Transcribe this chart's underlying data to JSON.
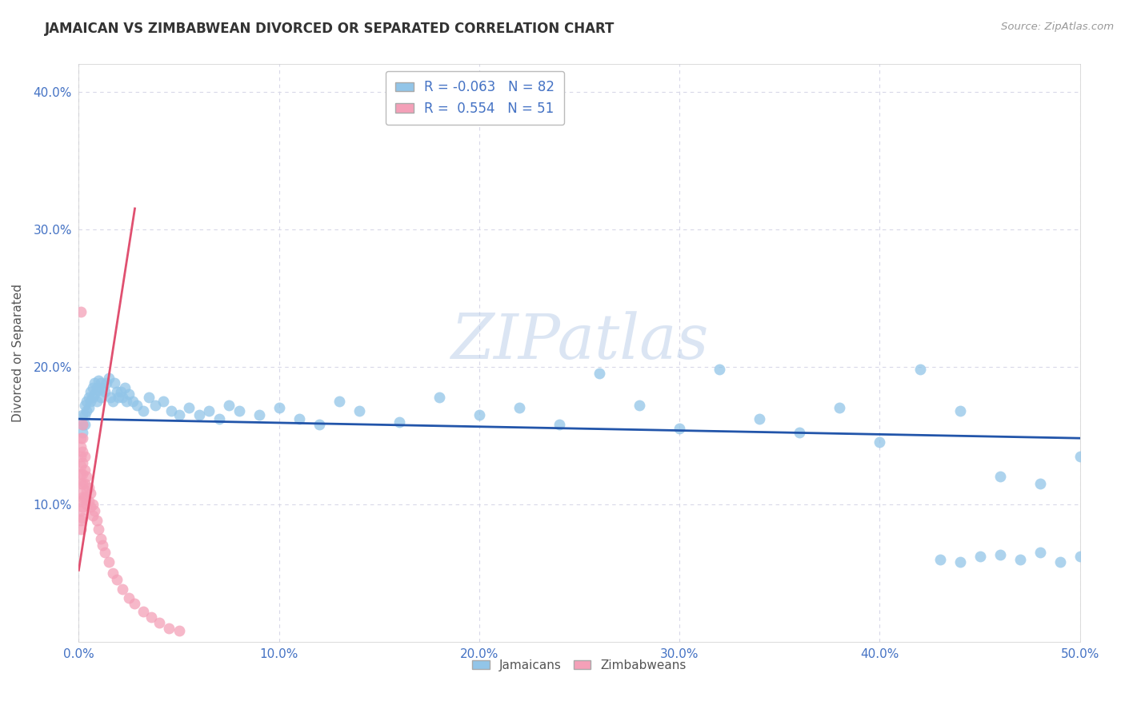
{
  "title": "JAMAICAN VS ZIMBABWEAN DIVORCED OR SEPARATED CORRELATION CHART",
  "source": "Source: ZipAtlas.com",
  "ylabel_label": "Divorced or Separated",
  "xlim": [
    0.0,
    0.5
  ],
  "ylim": [
    0.0,
    0.42
  ],
  "xticks": [
    0.0,
    0.1,
    0.2,
    0.3,
    0.4,
    0.5
  ],
  "yticks": [
    0.1,
    0.2,
    0.3,
    0.4
  ],
  "legend_bottom": [
    "Jamaicans",
    "Zimbabweans"
  ],
  "R_jamaican": -0.063,
  "N_jamaican": 82,
  "R_zimbabwean": 0.554,
  "N_zimbabwean": 51,
  "jamaican_color": "#92C5E8",
  "zimbabwean_color": "#F4A0B8",
  "jamaican_line_color": "#2255AA",
  "zimbabwean_line_color": "#E05070",
  "background_color": "#ffffff",
  "grid_color": "#D8D8E8",
  "watermark": "ZIPatlas",
  "jam_x": [
    0.002,
    0.002,
    0.002,
    0.003,
    0.003,
    0.003,
    0.004,
    0.004,
    0.005,
    0.005,
    0.006,
    0.006,
    0.007,
    0.007,
    0.008,
    0.008,
    0.009,
    0.009,
    0.01,
    0.01,
    0.011,
    0.011,
    0.012,
    0.013,
    0.014,
    0.015,
    0.016,
    0.017,
    0.018,
    0.019,
    0.02,
    0.021,
    0.022,
    0.023,
    0.024,
    0.025,
    0.027,
    0.029,
    0.032,
    0.035,
    0.038,
    0.042,
    0.046,
    0.05,
    0.055,
    0.06,
    0.065,
    0.07,
    0.075,
    0.08,
    0.09,
    0.1,
    0.11,
    0.12,
    0.13,
    0.14,
    0.16,
    0.18,
    0.2,
    0.22,
    0.24,
    0.26,
    0.28,
    0.3,
    0.32,
    0.34,
    0.36,
    0.38,
    0.4,
    0.42,
    0.44,
    0.46,
    0.48,
    0.5,
    0.5,
    0.49,
    0.48,
    0.47,
    0.46,
    0.45,
    0.44,
    0.43
  ],
  "jam_y": [
    0.165,
    0.158,
    0.152,
    0.172,
    0.165,
    0.158,
    0.175,
    0.168,
    0.178,
    0.17,
    0.182,
    0.175,
    0.185,
    0.178,
    0.188,
    0.18,
    0.185,
    0.175,
    0.19,
    0.183,
    0.188,
    0.178,
    0.185,
    0.182,
    0.188,
    0.192,
    0.178,
    0.175,
    0.188,
    0.182,
    0.178,
    0.182,
    0.178,
    0.185,
    0.175,
    0.18,
    0.175,
    0.172,
    0.168,
    0.178,
    0.172,
    0.175,
    0.168,
    0.165,
    0.17,
    0.165,
    0.168,
    0.162,
    0.172,
    0.168,
    0.165,
    0.17,
    0.162,
    0.158,
    0.175,
    0.168,
    0.16,
    0.178,
    0.165,
    0.17,
    0.158,
    0.195,
    0.172,
    0.155,
    0.198,
    0.162,
    0.152,
    0.17,
    0.145,
    0.198,
    0.168,
    0.12,
    0.115,
    0.135,
    0.062,
    0.058,
    0.065,
    0.06,
    0.063,
    0.062,
    0.058,
    0.06
  ],
  "zimb_x": [
    0.001,
    0.001,
    0.001,
    0.001,
    0.001,
    0.001,
    0.001,
    0.001,
    0.001,
    0.001,
    0.001,
    0.002,
    0.002,
    0.002,
    0.002,
    0.002,
    0.002,
    0.002,
    0.002,
    0.002,
    0.003,
    0.003,
    0.003,
    0.003,
    0.004,
    0.004,
    0.004,
    0.005,
    0.005,
    0.006,
    0.006,
    0.007,
    0.007,
    0.008,
    0.009,
    0.01,
    0.011,
    0.012,
    0.013,
    0.015,
    0.017,
    0.019,
    0.022,
    0.025,
    0.028,
    0.032,
    0.036,
    0.04,
    0.045,
    0.05,
    0.001
  ],
  "zimb_y": [
    0.148,
    0.142,
    0.135,
    0.128,
    0.122,
    0.115,
    0.108,
    0.102,
    0.095,
    0.088,
    0.082,
    0.158,
    0.148,
    0.138,
    0.13,
    0.122,
    0.115,
    0.105,
    0.098,
    0.09,
    0.135,
    0.125,
    0.115,
    0.105,
    0.12,
    0.11,
    0.1,
    0.112,
    0.102,
    0.108,
    0.098,
    0.1,
    0.092,
    0.095,
    0.088,
    0.082,
    0.075,
    0.07,
    0.065,
    0.058,
    0.05,
    0.045,
    0.038,
    0.032,
    0.028,
    0.022,
    0.018,
    0.014,
    0.01,
    0.008,
    0.24
  ],
  "zimb_line_x": [
    0.0,
    0.028
  ],
  "zimb_line_y": [
    0.052,
    0.315
  ],
  "jam_line_x": [
    0.0,
    0.5
  ],
  "jam_line_y": [
    0.162,
    0.148
  ]
}
